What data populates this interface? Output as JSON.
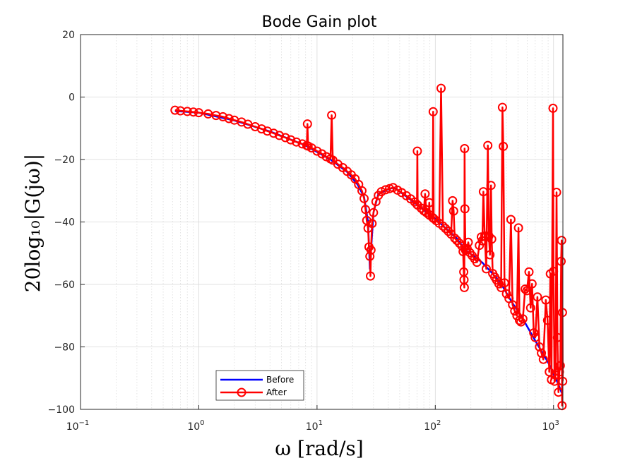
{
  "chart_data": {
    "type": "line",
    "title": "Bode Gain plot",
    "xlabel": "ω [rad/s]",
    "ylabel": "20log₁₀|G(jω)|",
    "x_scale": "log",
    "xlim": [
      0.1,
      1200
    ],
    "ylim": [
      -100,
      20
    ],
    "xticks": [
      {
        "value": 0.1,
        "base": "10",
        "exp": "−1"
      },
      {
        "value": 1,
        "base": "10",
        "exp": "0"
      },
      {
        "value": 10,
        "base": "10",
        "exp": "1"
      },
      {
        "value": 100,
        "base": "10",
        "exp": "2"
      },
      {
        "value": 1000,
        "base": "10",
        "exp": "3"
      }
    ],
    "yticks": [
      {
        "value": 20,
        "label": "20"
      },
      {
        "value": 0,
        "label": "0"
      },
      {
        "value": -20,
        "label": "−20"
      },
      {
        "value": -40,
        "label": "−40"
      },
      {
        "value": -60,
        "label": "−60"
      },
      {
        "value": -80,
        "label": "−80"
      },
      {
        "value": -100,
        "label": "−100"
      }
    ],
    "grid": true,
    "minor_grid": true,
    "legend_position": "bottom-left",
    "series": [
      {
        "name": "Before",
        "color": "#0000ff",
        "marker": "none",
        "points": [
          [
            0.63,
            -4.5
          ],
          [
            1,
            -5
          ],
          [
            2,
            -7.5
          ],
          [
            4,
            -11
          ],
          [
            8,
            -15.5
          ],
          [
            13,
            -20
          ],
          [
            18,
            -24
          ],
          [
            22,
            -28
          ],
          [
            25,
            -32
          ],
          [
            27,
            -40
          ],
          [
            28,
            -55
          ],
          [
            30,
            -37
          ],
          [
            33,
            -31
          ],
          [
            40,
            -29.5
          ],
          [
            45,
            -29
          ],
          [
            60,
            -32.5
          ],
          [
            100,
            -39
          ],
          [
            150,
            -45
          ],
          [
            180,
            -49
          ],
          [
            250,
            -53
          ],
          [
            350,
            -59
          ],
          [
            450,
            -66
          ],
          [
            550,
            -71
          ],
          [
            700,
            -78
          ],
          [
            900,
            -85
          ],
          [
            1100,
            -92
          ],
          [
            1180,
            -95
          ]
        ]
      },
      {
        "name": "After",
        "color": "#ff0000",
        "marker": "circle",
        "points": [
          [
            0.63,
            -4.2
          ],
          [
            0.7,
            -4.4
          ],
          [
            0.8,
            -4.6
          ],
          [
            0.9,
            -4.8
          ],
          [
            1,
            -5.0
          ],
          [
            1.2,
            -5.4
          ],
          [
            1.4,
            -5.9
          ],
          [
            1.6,
            -6.3
          ],
          [
            1.8,
            -6.9
          ],
          [
            2,
            -7.4
          ],
          [
            2.3,
            -8.0
          ],
          [
            2.6,
            -8.7
          ],
          [
            3,
            -9.5
          ],
          [
            3.4,
            -10.2
          ],
          [
            3.8,
            -10.9
          ],
          [
            4.3,
            -11.6
          ],
          [
            4.8,
            -12.3
          ],
          [
            5.4,
            -13.0
          ],
          [
            6,
            -13.7
          ],
          [
            6.7,
            -14.4
          ],
          [
            7.5,
            -15.0
          ],
          [
            8.2,
            -15.5
          ],
          [
            8.3,
            -8.6
          ],
          [
            8.4,
            -15.7
          ],
          [
            9,
            -16.3
          ],
          [
            10,
            -17.3
          ],
          [
            11,
            -18.2
          ],
          [
            12,
            -19.1
          ],
          [
            13,
            -19.8
          ],
          [
            13.3,
            -5.8
          ],
          [
            13.6,
            -20.2
          ],
          [
            15,
            -21.5
          ],
          [
            16.5,
            -22.6
          ],
          [
            18,
            -23.8
          ],
          [
            19.5,
            -24.9
          ],
          [
            21,
            -26.2
          ],
          [
            22.5,
            -28.0
          ],
          [
            24,
            -30.0
          ],
          [
            25,
            -32.5
          ],
          [
            25.7,
            -36.0
          ],
          [
            26.3,
            -39.5
          ],
          [
            27,
            -42.0
          ],
          [
            27.5,
            -48.0
          ],
          [
            28,
            -51.0
          ],
          [
            28.3,
            -57.3
          ],
          [
            28.6,
            -49.0
          ],
          [
            29.2,
            -40.5
          ],
          [
            30,
            -37.0
          ],
          [
            31.5,
            -33.5
          ],
          [
            33,
            -31.5
          ],
          [
            35,
            -30.3
          ],
          [
            38,
            -29.7
          ],
          [
            41,
            -29.3
          ],
          [
            44,
            -29.0
          ],
          [
            48,
            -29.8
          ],
          [
            52,
            -30.6
          ],
          [
            57,
            -31.6
          ],
          [
            62,
            -32.6
          ],
          [
            67,
            -33.6
          ],
          [
            70,
            -34.4
          ],
          [
            70.5,
            -17.3
          ],
          [
            71,
            -34.6
          ],
          [
            76,
            -35.6
          ],
          [
            80,
            -36.4
          ],
          [
            82,
            -31.0
          ],
          [
            84,
            -37.0
          ],
          [
            88,
            -37.6
          ],
          [
            89,
            -33.8
          ],
          [
            90,
            -37.9
          ],
          [
            95,
            -38.6
          ],
          [
            96,
            -4.7
          ],
          [
            97,
            -38.9
          ],
          [
            102,
            -39.6
          ],
          [
            108,
            -40.4
          ],
          [
            112,
            2.8
          ],
          [
            116,
            -41.3
          ],
          [
            122,
            -42.1
          ],
          [
            129,
            -43.0
          ],
          [
            136,
            -43.9
          ],
          [
            140,
            -33.2
          ],
          [
            143,
            -36.5
          ],
          [
            146,
            -45.2
          ],
          [
            152,
            -45.9
          ],
          [
            160,
            -46.8
          ],
          [
            168,
            -47.7
          ],
          [
            172,
            -49.5
          ],
          [
            174,
            -56.0
          ],
          [
            175,
            -58.5
          ],
          [
            176,
            -61.0
          ],
          [
            177,
            -16.5
          ],
          [
            178,
            -35.8
          ],
          [
            180,
            -49.0
          ],
          [
            186,
            -48.5
          ],
          [
            190,
            -46.5
          ],
          [
            196,
            -49.8
          ],
          [
            205,
            -50.8
          ],
          [
            215,
            -51.8
          ],
          [
            225,
            -52.9
          ],
          [
            236,
            -47.5
          ],
          [
            245,
            -44.8
          ],
          [
            250,
            -46.0
          ],
          [
            255,
            -30.3
          ],
          [
            262,
            -44.5
          ],
          [
            270,
            -55.0
          ],
          [
            278,
            -15.5
          ],
          [
            284,
            -44.5
          ],
          [
            290,
            -50.5
          ],
          [
            296,
            -28.3
          ],
          [
            300,
            -45.5
          ],
          [
            306,
            -56.5
          ],
          [
            318,
            -57.6
          ],
          [
            330,
            -58.6
          ],
          [
            345,
            -59.8
          ],
          [
            360,
            -61.0
          ],
          [
            370,
            -3.3
          ],
          [
            376,
            -15.8
          ],
          [
            385,
            -59.5
          ],
          [
            400,
            -63.0
          ],
          [
            420,
            -64.5
          ],
          [
            436,
            -39.2
          ],
          [
            450,
            -66.5
          ],
          [
            470,
            -68.5
          ],
          [
            490,
            -70.0
          ],
          [
            505,
            -41.9
          ],
          [
            515,
            -71.5
          ],
          [
            530,
            -72.0
          ],
          [
            550,
            -71.0
          ],
          [
            575,
            -61.5
          ],
          [
            595,
            -62.0
          ],
          [
            620,
            -56.0
          ],
          [
            640,
            -67.5
          ],
          [
            658,
            -59.8
          ],
          [
            680,
            -75.5
          ],
          [
            700,
            -77.0
          ],
          [
            730,
            -64.0
          ],
          [
            760,
            -80.0
          ],
          [
            790,
            -82.0
          ],
          [
            820,
            -84.0
          ],
          [
            860,
            -65.0
          ],
          [
            890,
            -71.5
          ],
          [
            920,
            -88.0
          ],
          [
            940,
            -56.6
          ],
          [
            960,
            -90.5
          ],
          [
            990,
            -3.6
          ],
          [
            1000,
            -55.8
          ],
          [
            1020,
            -91.0
          ],
          [
            1040,
            -89.0
          ],
          [
            1060,
            -30.5
          ],
          [
            1080,
            -77.0
          ],
          [
            1100,
            -94.5
          ],
          [
            1120,
            -88.0
          ],
          [
            1140,
            -86.0
          ],
          [
            1160,
            -52.6
          ],
          [
            1170,
            -45.9
          ],
          [
            1180,
            -98.8
          ],
          [
            1190,
            -69.0
          ],
          [
            1195,
            -91.0
          ]
        ]
      }
    ]
  }
}
